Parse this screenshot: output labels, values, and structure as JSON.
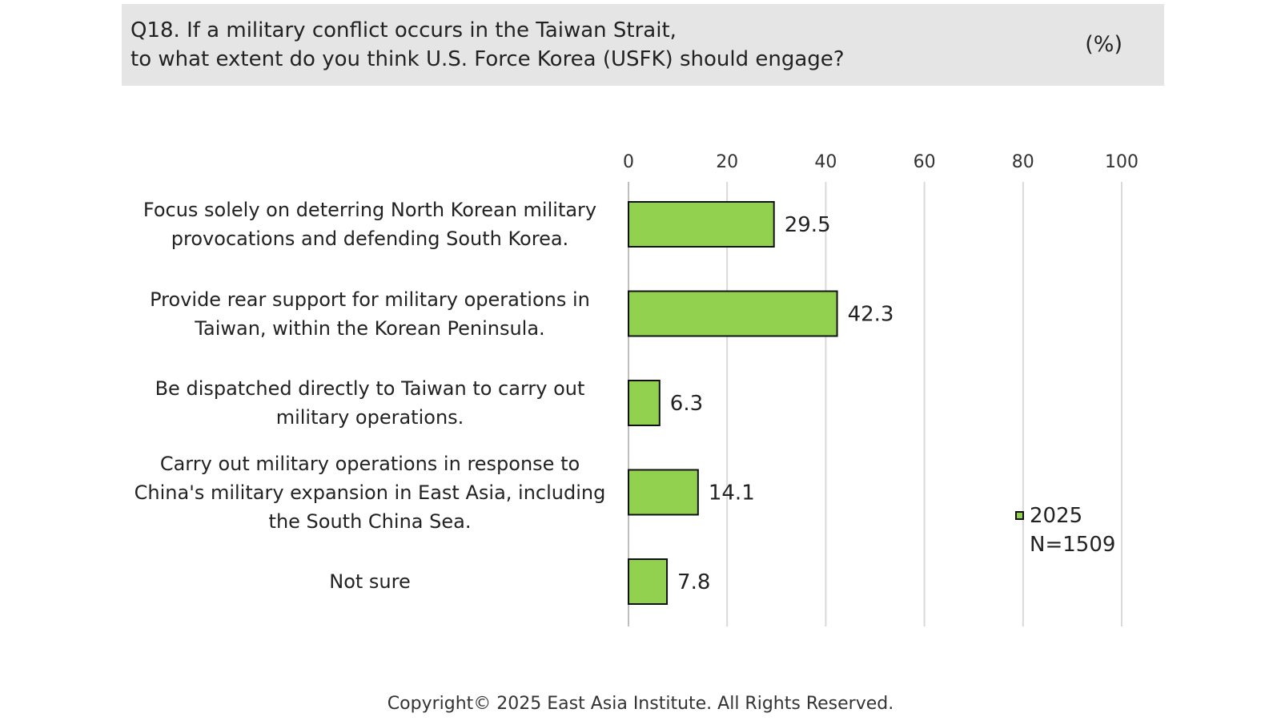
{
  "header": {
    "question_line1": "Q18. If a military conflict occurs in the Taiwan Strait,",
    "question_line2": "to what extent do you think U.S. Force Korea (USFK) should engage?",
    "unit": "(%)"
  },
  "chart_data": {
    "type": "bar",
    "orientation": "horizontal",
    "categories": [
      [
        "Focus solely on deterring North Korean military",
        "provocations and defending South Korea."
      ],
      [
        "Provide rear support for military operations in",
        "Taiwan, within the Korean Peninsula."
      ],
      [
        "Be dispatched directly to Taiwan to carry out",
        "military operations."
      ],
      [
        "Carry out military operations in response to",
        "China's military expansion in East Asia, including",
        "the South China Sea."
      ],
      [
        "Not sure"
      ]
    ],
    "series": [
      {
        "name": "2025",
        "values": [
          29.5,
          42.3,
          6.3,
          14.1,
          7.8
        ],
        "value_labels": [
          "29.5",
          "42.3",
          "6.3",
          "14.1",
          "7.8"
        ],
        "color": "#92d050"
      }
    ],
    "xlim": [
      0,
      100
    ],
    "ticks": [
      "0",
      "20",
      "40",
      "60",
      "80",
      "100"
    ],
    "grid": true,
    "axis_position": "top",
    "legend_position": "bottom-right",
    "sample_note": "N=1509"
  },
  "colors": {
    "bar_fill": "#92d050",
    "bar_stroke": "#111111",
    "grid": "#d9d9d9",
    "header_bg": "#e5e5e5"
  },
  "footer": {
    "copyright": "Copyright© 2025 East Asia Institute. All Rights Reserved."
  }
}
